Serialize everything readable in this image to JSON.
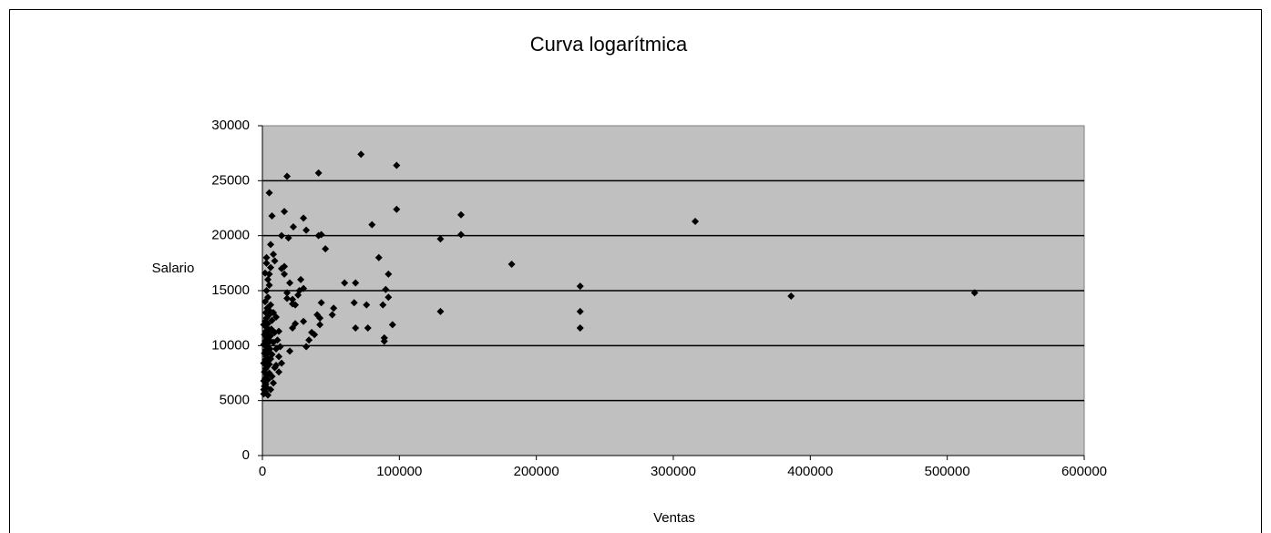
{
  "chart_data": {
    "type": "scatter",
    "title": "Curva logarítmica",
    "x_label": "Ventas",
    "y_label": "Salario",
    "color": "#000000",
    "background": "#c0c0c0",
    "grid": true,
    "xlim": [
      0,
      600000
    ],
    "xticks": [
      0,
      100000,
      200000,
      300000,
      400000,
      500000,
      600000
    ],
    "ylim": [
      0,
      30000
    ],
    "yticks": [
      0,
      5000,
      10000,
      15000,
      20000,
      25000,
      30000
    ],
    "x": [
      520000,
      386000,
      316000,
      232000,
      232000,
      232000,
      182000,
      145000,
      145000,
      130000,
      130000,
      98000,
      98000,
      95000,
      92000,
      92000,
      90000,
      89000,
      89000,
      88000,
      85000,
      80000,
      76000,
      77000,
      72000,
      68000,
      67000,
      68000,
      60000,
      52000,
      51000,
      46000,
      43000,
      41000,
      41000,
      43000,
      42000,
      42000,
      40000,
      38000,
      36000,
      30000,
      32000,
      28000,
      30000,
      27000,
      26000,
      30000,
      32000,
      34000,
      24000,
      22000,
      22000,
      24000,
      20000,
      22600,
      18000,
      16000,
      19000,
      14000,
      14000,
      16000,
      16000,
      18000,
      18000,
      20000,
      22000,
      12000,
      14000,
      12000,
      10000,
      5000,
      7000,
      6000,
      8000,
      3000,
      9000,
      5000,
      1000,
      1000,
      2000,
      1500,
      2500,
      3000,
      1000,
      2000,
      3000,
      4000,
      1500,
      2500,
      3500,
      5000,
      1000,
      2000,
      3000,
      4000,
      5000,
      6000,
      1500,
      2500,
      3500,
      4500,
      5500,
      7000,
      1000,
      2000,
      3000,
      4000,
      5000,
      6000,
      8000,
      1500,
      2500,
      3500,
      4500,
      6500,
      9000,
      1000,
      2000,
      3000,
      4000,
      5000,
      7000,
      2500,
      3500,
      5000,
      6000,
      8000,
      2000,
      4000,
      3000,
      5000,
      4000,
      2000,
      6000,
      3000,
      10000,
      11000,
      12000,
      10000,
      13000,
      9000,
      7000,
      8000,
      6000,
      4000
    ],
    "values": [
      14800,
      14500,
      21300,
      15400,
      13100,
      11600,
      17400,
      21900,
      20100,
      19700,
      13100,
      26400,
      22400,
      11900,
      16500,
      14400,
      15100,
      10700,
      10400,
      13700,
      18000,
      21000,
      13700,
      11600,
      27400,
      15700,
      13900,
      11600,
      15700,
      13400,
      12800,
      18800,
      20100,
      25700,
      20000,
      13900,
      12500,
      11900,
      12800,
      11000,
      11200,
      21600,
      20500,
      16000,
      15200,
      15000,
      14600,
      12200,
      9900,
      10500,
      13700,
      14200,
      13800,
      12000,
      15700,
      20800,
      25400,
      22200,
      19800,
      20000,
      17000,
      17200,
      16500,
      14800,
      14300,
      9500,
      11600,
      9000,
      8400,
      7600,
      8200,
      23900,
      21800,
      19200,
      18300,
      18000,
      17700,
      16500,
      5600,
      6000,
      5800,
      6300,
      6500,
      6200,
      6800,
      7000,
      7300,
      6900,
      7600,
      7900,
      8100,
      7500,
      8400,
      8700,
      9000,
      8600,
      8300,
      8800,
      9300,
      9600,
      9900,
      9400,
      9700,
      9200,
      10100,
      10400,
      10700,
      10200,
      10500,
      10900,
      10300,
      11000,
      11300,
      11600,
      11100,
      11500,
      11200,
      11900,
      12200,
      12500,
      12000,
      12800,
      12300,
      13000,
      13400,
      13200,
      13700,
      13000,
      14000,
      14400,
      15000,
      15500,
      16000,
      16600,
      17100,
      17500,
      9700,
      10500,
      11300,
      12600,
      9900,
      8000,
      7200,
      6600,
      6000,
      5500
    ]
  }
}
